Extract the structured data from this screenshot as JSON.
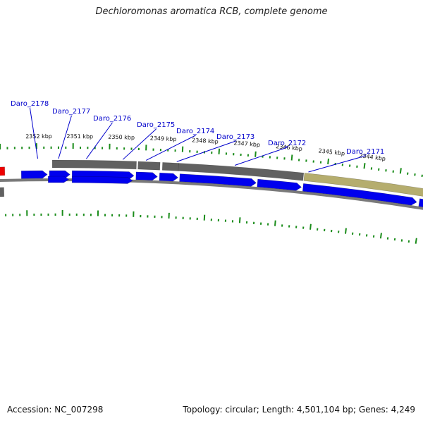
{
  "header": {
    "title": "Dechloromonas aromatica RCB, complete genome"
  },
  "footer": {
    "accession": "Accession: NC_007298",
    "summary": "Topology: circular; Length: 4,501,104 bp; Genes: 4,249"
  },
  "colors": {
    "backbone": "#7a7a7a",
    "cds": "#0000ee",
    "gene_region": "#616161",
    "highlight": "#b5ad6e",
    "rna": "#ee0000",
    "ticks": "#1a8c1a",
    "label": "#0000cc"
  },
  "genome_map": {
    "scale_labels": [
      "2352 kbp",
      "2351 kbp",
      "2350 kbp",
      "2349 kbp",
      "2348 kbp",
      "2347 kbp",
      "2346 kbp",
      "2345 kbp",
      "2344 kbp"
    ],
    "genes": [
      {
        "label": "Daro_2178"
      },
      {
        "label": "Daro_2177"
      },
      {
        "label": "Daro_2176"
      },
      {
        "label": "Daro_2175"
      },
      {
        "label": "Daro_2174"
      },
      {
        "label": "Daro_2173"
      },
      {
        "label": "Daro_2172"
      },
      {
        "label": "Daro_2171"
      }
    ]
  }
}
